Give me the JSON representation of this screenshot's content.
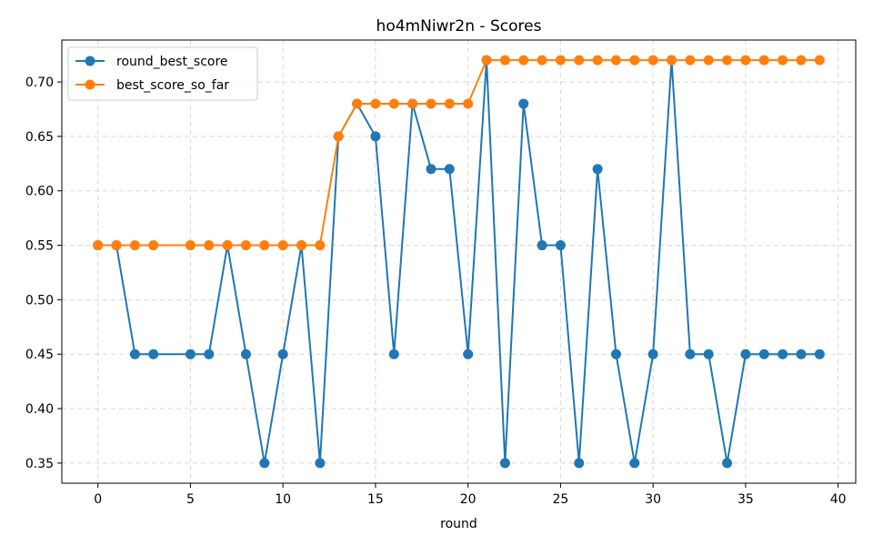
{
  "chart_data": {
    "type": "line",
    "title": "ho4mNiwr2n - Scores",
    "xlabel": "round",
    "ylabel": "",
    "xlim": [
      -1.95,
      40.95
    ],
    "ylim": [
      0.3315,
      0.7385
    ],
    "xticks": [
      0,
      5,
      10,
      15,
      20,
      25,
      30,
      35,
      40
    ],
    "yticks": [
      0.35,
      0.4,
      0.45,
      0.5,
      0.55,
      0.6,
      0.65,
      0.7
    ],
    "ytick_labels": [
      "0.35",
      "0.40",
      "0.45",
      "0.50",
      "0.55",
      "0.60",
      "0.65",
      "0.70"
    ],
    "grid": true,
    "legend_position": "top-left",
    "series": [
      {
        "name": "round_best_score",
        "color": "#1f77b4",
        "marker": "circle",
        "x": [
          0,
          1,
          2,
          3,
          5,
          6,
          7,
          8,
          9,
          10,
          11,
          12,
          13,
          14,
          15,
          16,
          17,
          18,
          19,
          20,
          21,
          22,
          23,
          24,
          25,
          26,
          27,
          28,
          29,
          30,
          31,
          32,
          33,
          34,
          35,
          36,
          37,
          38,
          39
        ],
        "values": [
          0.55,
          0.55,
          0.45,
          0.45,
          0.45,
          0.45,
          0.55,
          0.45,
          0.35,
          0.45,
          0.55,
          0.35,
          0.65,
          0.68,
          0.65,
          0.45,
          0.68,
          0.62,
          0.62,
          0.45,
          0.72,
          0.35,
          0.68,
          0.55,
          0.55,
          0.35,
          0.62,
          0.45,
          0.35,
          0.45,
          0.72,
          0.45,
          0.45,
          0.35,
          0.45,
          0.45,
          0.45,
          0.45,
          0.45
        ]
      },
      {
        "name": "best_score_so_far",
        "color": "#ff7f0e",
        "marker": "circle",
        "x": [
          0,
          1,
          2,
          3,
          5,
          6,
          7,
          8,
          9,
          10,
          11,
          12,
          13,
          14,
          15,
          16,
          17,
          18,
          19,
          20,
          21,
          22,
          23,
          24,
          25,
          26,
          27,
          28,
          29,
          30,
          31,
          32,
          33,
          34,
          35,
          36,
          37,
          38,
          39
        ],
        "values": [
          0.55,
          0.55,
          0.55,
          0.55,
          0.55,
          0.55,
          0.55,
          0.55,
          0.55,
          0.55,
          0.55,
          0.55,
          0.65,
          0.68,
          0.68,
          0.68,
          0.68,
          0.68,
          0.68,
          0.68,
          0.72,
          0.72,
          0.72,
          0.72,
          0.72,
          0.72,
          0.72,
          0.72,
          0.72,
          0.72,
          0.72,
          0.72,
          0.72,
          0.72,
          0.72,
          0.72,
          0.72,
          0.72,
          0.72
        ]
      }
    ]
  }
}
